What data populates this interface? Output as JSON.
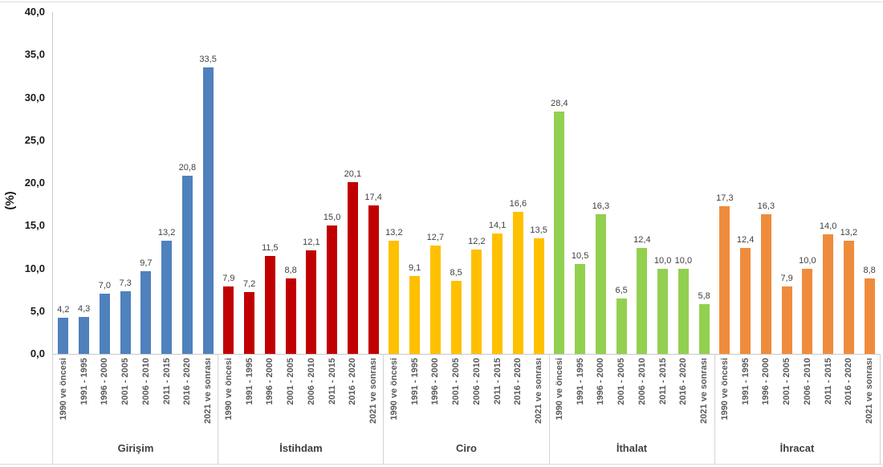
{
  "y_axis": {
    "title": "(%)",
    "ticks": [
      "0,0",
      "5,0",
      "10,0",
      "15,0",
      "20,0",
      "25,0",
      "30,0",
      "35,0",
      "40,0"
    ],
    "min": 0,
    "max": 40,
    "step": 5
  },
  "chart_data": {
    "type": "bar",
    "title": "",
    "xlabel": "",
    "ylabel": "(%)",
    "ylim": [
      0,
      40
    ],
    "grid": false,
    "legend_position": "none",
    "decimal_separator": ",",
    "categories": [
      "1990 ve öncesi",
      "1991 - 1995",
      "1996 - 2000",
      "2001 - 2005",
      "2006 - 2010",
      "2011 - 2015",
      "2016 - 2020",
      "2021 ve sonrası"
    ],
    "groups": [
      "Girişim",
      "İstihdam",
      "Ciro",
      "İthalat",
      "İhracat"
    ],
    "series": [
      {
        "name": "Girişim",
        "color": "#4F81BD",
        "values": [
          4.2,
          4.3,
          7.0,
          7.3,
          9.7,
          13.2,
          20.8,
          33.5
        ]
      },
      {
        "name": "İstihdam",
        "color": "#C00000",
        "values": [
          7.9,
          7.2,
          11.5,
          8.8,
          12.1,
          15.0,
          20.1,
          17.4
        ]
      },
      {
        "name": "Ciro",
        "color": "#FFC000",
        "values": [
          13.2,
          9.1,
          12.7,
          8.5,
          12.2,
          14.1,
          16.6,
          13.5
        ]
      },
      {
        "name": "İthalat",
        "color": "#92D050",
        "values": [
          28.4,
          10.5,
          16.3,
          6.5,
          12.4,
          10.0,
          10.0,
          5.8
        ]
      },
      {
        "name": "İhracat",
        "color": "#EF8C3C",
        "values": [
          17.3,
          12.4,
          16.3,
          7.9,
          10.0,
          14.0,
          13.2,
          8.8
        ]
      }
    ]
  }
}
